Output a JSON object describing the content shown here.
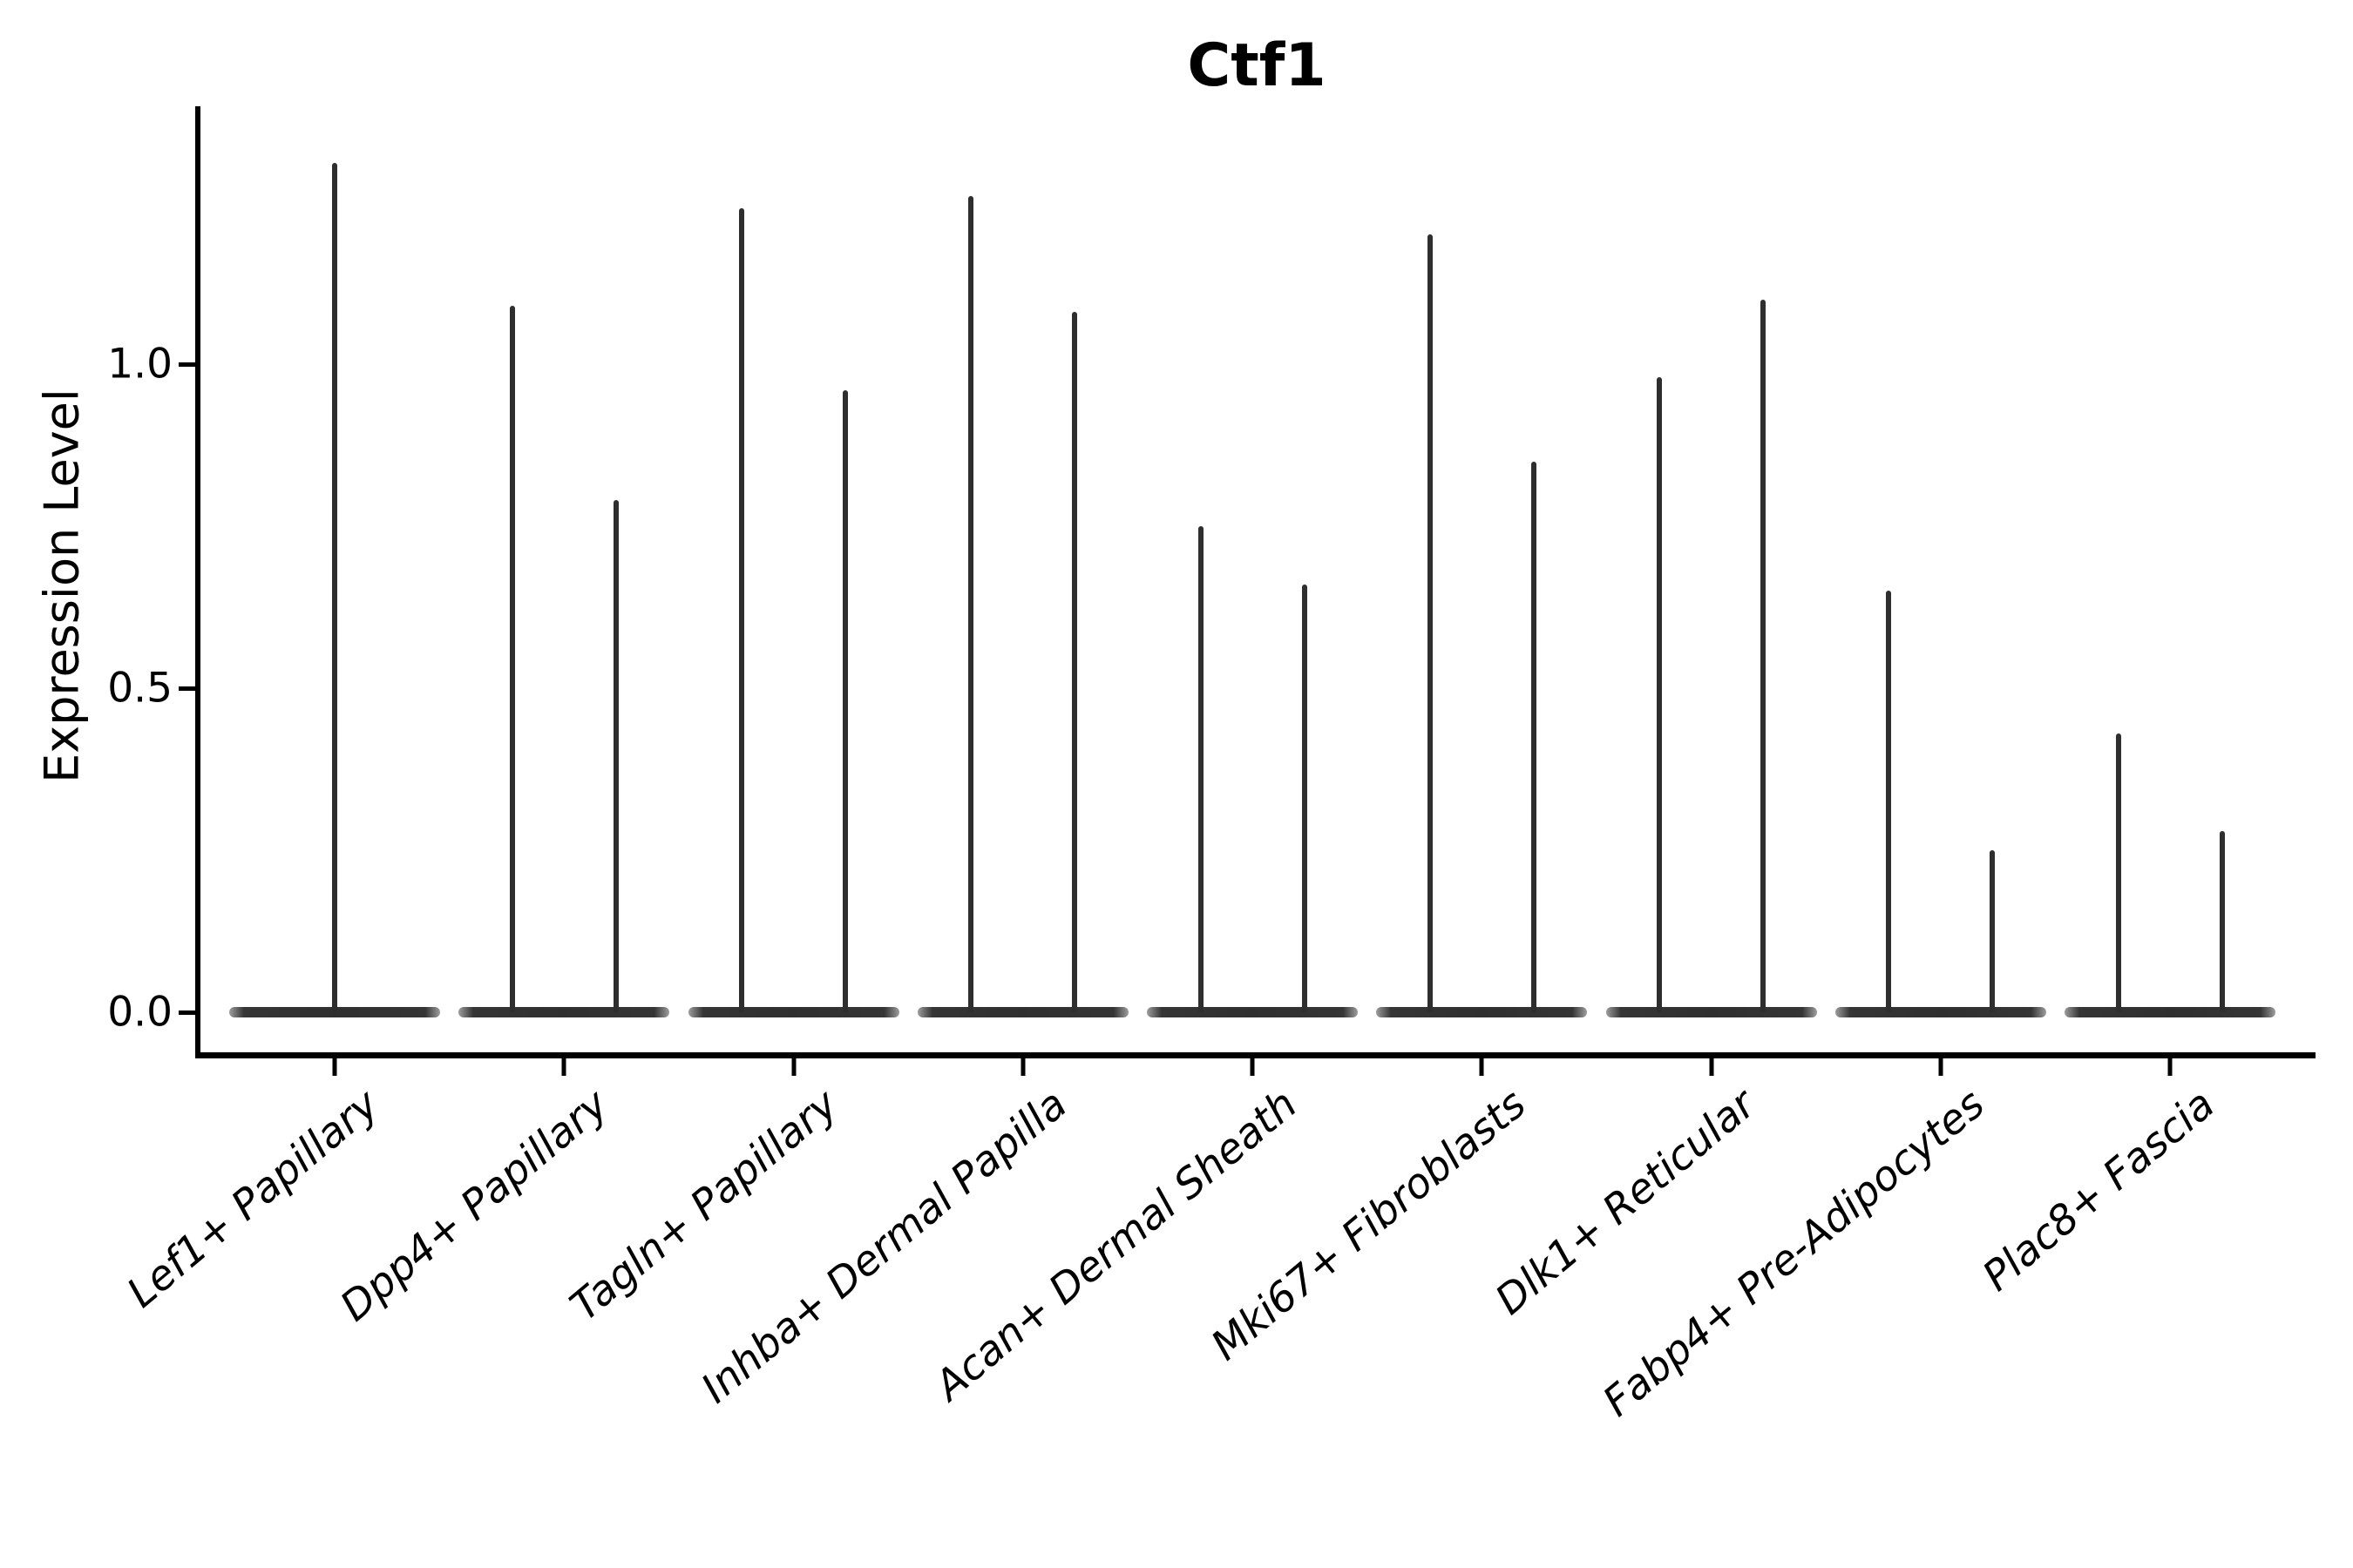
{
  "title": "Ctf1",
  "y_axis": {
    "label": "Expression Level",
    "ticks": [
      "1.0",
      "0.5",
      "0.0"
    ]
  },
  "colors": {
    "ink": "#000000",
    "violin": "#2e2e2e"
  },
  "chart_data": {
    "type": "violin",
    "title": "Ctf1",
    "xlabel": "",
    "ylabel": "Expression Level",
    "ylim": [
      -0.06,
      1.4
    ],
    "ytick_values": [
      1.0,
      0.5,
      0.0
    ],
    "grid": false,
    "legend": "none",
    "description": "Needle-thin violins: density bulk is a flat disk at 0 with thin spikes reaching each group's maximum expression.",
    "categories": [
      "Lef1+ Papillary",
      "Dpp4+ Papillary",
      "Tagln+ Papillary",
      "Inhba+ Dermal Papilla",
      "Acan+ Dermal Sheath",
      "Mki67+ Fibroblasts",
      "Dlk1+ Reticular",
      "Fabp4+ Pre-Adipocytes",
      "Plac8+ Fascia"
    ],
    "violins": [
      {
        "category": "Lef1+ Papillary",
        "bulk_at": 0,
        "spike_maxima": [
          1.31
        ]
      },
      {
        "category": "Dpp4+ Papillary",
        "bulk_at": 0,
        "spike_maxima": [
          1.09,
          0.79
        ]
      },
      {
        "category": "Tagln+ Papillary",
        "bulk_at": 0,
        "spike_maxima": [
          1.24,
          0.96
        ]
      },
      {
        "category": "Inhba+ Dermal Papilla",
        "bulk_at": 0,
        "spike_maxima": [
          1.26,
          1.08
        ]
      },
      {
        "category": "Acan+ Dermal Sheath",
        "bulk_at": 0,
        "spike_maxima": [
          0.75,
          0.66
        ]
      },
      {
        "category": "Mki67+ Fibroblasts",
        "bulk_at": 0,
        "spike_maxima": [
          1.2,
          0.85
        ]
      },
      {
        "category": "Dlk1+ Reticular",
        "bulk_at": 0,
        "spike_maxima": [
          0.98,
          1.1
        ]
      },
      {
        "category": "Fabp4+ Pre-Adipocytes",
        "bulk_at": 0,
        "spike_maxima": [
          0.65,
          0.25
        ]
      },
      {
        "category": "Plac8+ Fascia",
        "bulk_at": 0,
        "spike_maxima": [
          0.43,
          0.28
        ]
      }
    ]
  }
}
